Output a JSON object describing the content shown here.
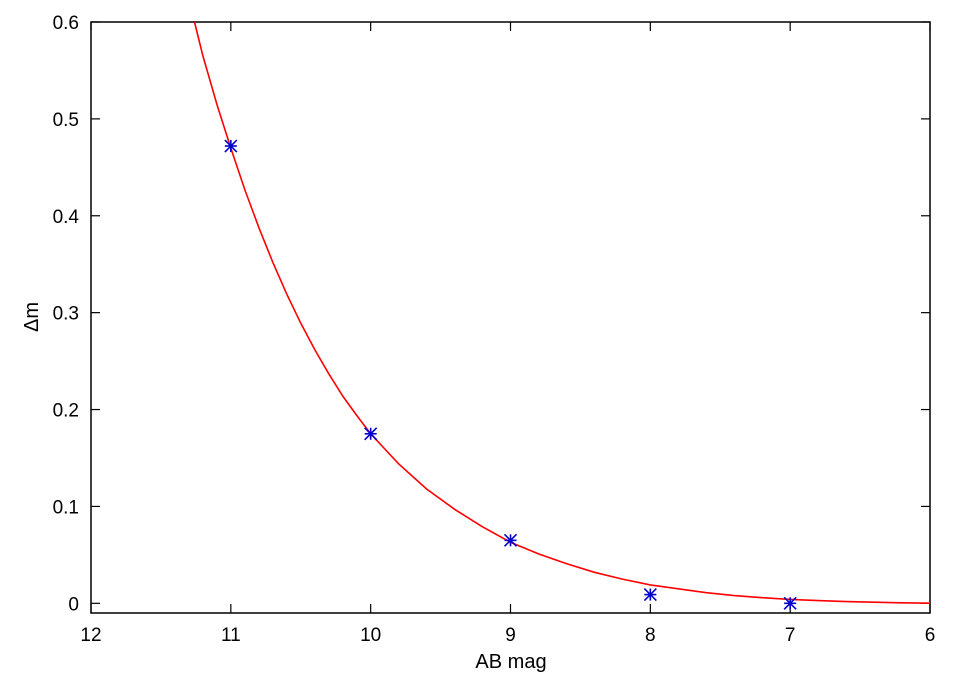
{
  "chart_data": {
    "type": "scatter",
    "title": "",
    "xlabel": "AB mag",
    "ylabel": "Δm",
    "xlim": [
      12,
      6
    ],
    "ylim": [
      -0.01,
      0.6
    ],
    "x_reversed": true,
    "grid": false,
    "x_ticks": [
      12,
      11,
      10,
      9,
      8,
      7,
      6
    ],
    "y_ticks": [
      0,
      0.1,
      0.2,
      0.3,
      0.4,
      0.5,
      0.6
    ],
    "x_tick_labels": [
      "12",
      "11",
      "10",
      "9",
      "8",
      "7",
      "6"
    ],
    "y_tick_labels": [
      "0",
      "0.1",
      "0.2",
      "0.3",
      "0.4",
      "0.5",
      "0.6"
    ],
    "series": [
      {
        "kind": "points",
        "marker": "asterisk",
        "color": "#0000cc",
        "x": [
          11,
          10,
          9,
          8,
          7
        ],
        "y": [
          0.472,
          0.175,
          0.065,
          0.009,
          0.0
        ]
      },
      {
        "kind": "fit-curve",
        "color": "#ff0000",
        "x": [
          11.26,
          11.2,
          11.1,
          11.0,
          10.9,
          10.8,
          10.7,
          10.6,
          10.5,
          10.4,
          10.3,
          10.2,
          10.1,
          10.0,
          9.8,
          9.6,
          9.4,
          9.2,
          9.0,
          8.8,
          8.6,
          8.4,
          8.2,
          8.0,
          7.8,
          7.6,
          7.4,
          7.2,
          7.0,
          6.8,
          6.6,
          6.4,
          6.2,
          6.0
        ],
        "y": [
          0.6,
          0.565,
          0.515,
          0.47,
          0.427,
          0.388,
          0.352,
          0.319,
          0.289,
          0.262,
          0.237,
          0.214,
          0.194,
          0.175,
          0.144,
          0.118,
          0.097,
          0.079,
          0.063,
          0.051,
          0.041,
          0.032,
          0.025,
          0.019,
          0.015,
          0.011,
          0.008,
          0.0058,
          0.004,
          0.0028,
          0.0018,
          0.0011,
          0.0005,
          0.0001
        ]
      }
    ]
  }
}
